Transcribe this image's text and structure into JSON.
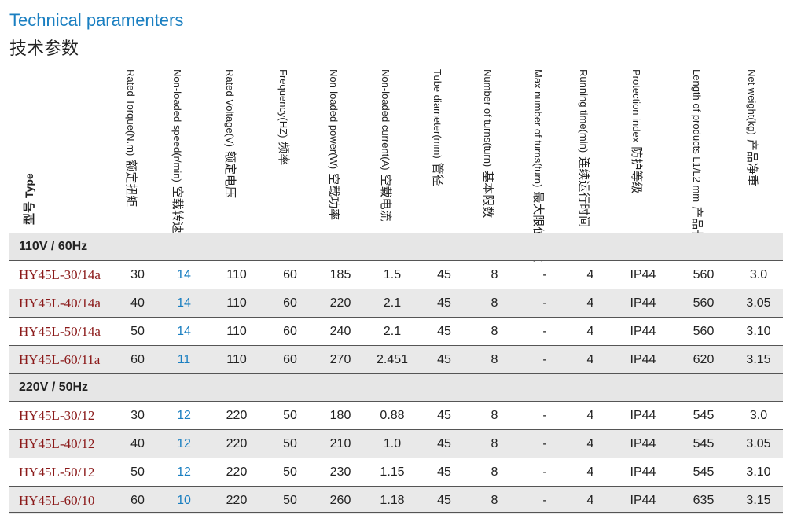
{
  "title_en": "Technical paramenters",
  "title_cn": "技术参数",
  "type_header": {
    "cn": "型号",
    "en": "Type"
  },
  "headers": [
    {
      "en": "Rated Torque(N.m)",
      "cn": "额定扭矩"
    },
    {
      "en": "Non-loaded speed(r/min)",
      "cn": "空载转速"
    },
    {
      "en": "Rated Voltage(V)",
      "cn": "额定电压"
    },
    {
      "en": "Frequency(HZ)",
      "cn": "频率"
    },
    {
      "en": "Non-loaded power(W)",
      "cn": "空载功率"
    },
    {
      "en": "Non-loaded current(A)",
      "cn": "空载电流"
    },
    {
      "en": "Tube diameter(mm)",
      "cn": "管径"
    },
    {
      "en": "Number of turns(turn)",
      "cn": "基本限数"
    },
    {
      "en": "Max number of turns(turn)",
      "cn": "最大限位圈数"
    },
    {
      "en": "Running time(min)",
      "cn": "连续运行时间"
    },
    {
      "en": "Protection index",
      "cn": "防护等级"
    },
    {
      "en": "Length of products L1/L2 mm",
      "cn": "产品长度"
    },
    {
      "en": "Net weight(kg)",
      "cn": "产品净重"
    }
  ],
  "groups": [
    {
      "label": "110V / 60Hz",
      "rows": [
        [
          "HY45L-30/14a",
          "30",
          "14",
          "110",
          "60",
          "185",
          "1.5",
          "45",
          "8",
          "-",
          "4",
          "IP44",
          "560",
          "3.0"
        ],
        [
          "HY45L-40/14a",
          "40",
          "14",
          "110",
          "60",
          "220",
          "2.1",
          "45",
          "8",
          "-",
          "4",
          "IP44",
          "560",
          "3.05"
        ],
        [
          "HY45L-50/14a",
          "50",
          "14",
          "110",
          "60",
          "240",
          "2.1",
          "45",
          "8",
          "-",
          "4",
          "IP44",
          "560",
          "3.10"
        ],
        [
          "HY45L-60/11a",
          "60",
          "11",
          "110",
          "60",
          "270",
          "2.451",
          "45",
          "8",
          "-",
          "4",
          "IP44",
          "620",
          "3.15"
        ]
      ]
    },
    {
      "label": "220V / 50Hz",
      "rows": [
        [
          "HY45L-30/12",
          "30",
          "12",
          "220",
          "50",
          "180",
          "0.88",
          "45",
          "8",
          "-",
          "4",
          "IP44",
          "545",
          "3.0"
        ],
        [
          "HY45L-40/12",
          "40",
          "12",
          "220",
          "50",
          "210",
          "1.0",
          "45",
          "8",
          "-",
          "4",
          "IP44",
          "545",
          "3.05"
        ],
        [
          "HY45L-50/12",
          "50",
          "12",
          "220",
          "50",
          "230",
          "1.15",
          "45",
          "8",
          "-",
          "4",
          "IP44",
          "545",
          "3.10"
        ],
        [
          "HY45L-60/10",
          "60",
          "10",
          "220",
          "50",
          "260",
          "1.18",
          "45",
          "8",
          "-",
          "4",
          "IP44",
          "635",
          "3.15"
        ]
      ]
    }
  ]
}
